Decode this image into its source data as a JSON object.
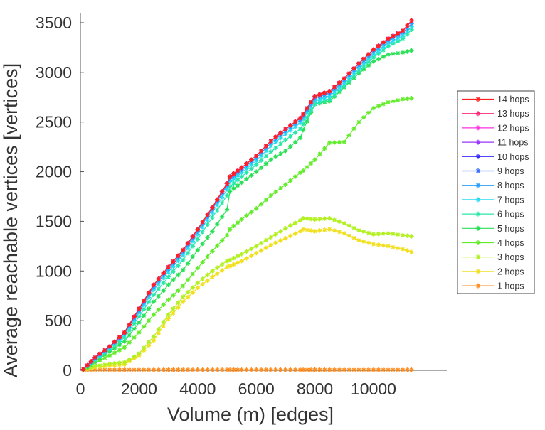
{
  "chart_data": {
    "type": "line",
    "title": "",
    "xlabel": "Volume (m) [edges]",
    "ylabel": "Average reachable vertices [vertices]",
    "xlim": [
      0,
      12500
    ],
    "ylim": [
      0,
      3600
    ],
    "x_ticks": [
      0,
      2000,
      4000,
      6000,
      8000,
      10000
    ],
    "y_ticks": [
      0,
      500,
      1000,
      1500,
      2000,
      2500,
      3000,
      3500
    ],
    "grid": false,
    "legend_position": "right",
    "x": [
      100,
      500,
      1000,
      1500,
      2000,
      2500,
      3000,
      3500,
      4000,
      4500,
      5000,
      5100,
      5500,
      6000,
      6500,
      7000,
      7500,
      7600,
      8000,
      8500,
      9000,
      9500,
      10000,
      10500,
      11000,
      11300
    ],
    "series": [
      {
        "name": "14 hops",
        "color": "#ff2020",
        "values": [
          10,
          130,
          240,
          380,
          620,
          860,
          1040,
          1210,
          1420,
          1640,
          1880,
          1950,
          2040,
          2160,
          2310,
          2430,
          2540,
          2580,
          2760,
          2810,
          2940,
          3090,
          3230,
          3340,
          3420,
          3520
        ]
      },
      {
        "name": "13 hops",
        "color": "#ff2a7a",
        "values": [
          10,
          130,
          240,
          380,
          620,
          860,
          1040,
          1210,
          1420,
          1640,
          1880,
          1950,
          2040,
          2160,
          2310,
          2430,
          2540,
          2580,
          2760,
          2810,
          2940,
          3090,
          3230,
          3340,
          3420,
          3520
        ]
      },
      {
        "name": "12 hops",
        "color": "#ff30e0",
        "values": [
          10,
          130,
          240,
          380,
          620,
          860,
          1040,
          1210,
          1420,
          1640,
          1880,
          1950,
          2040,
          2160,
          2310,
          2430,
          2540,
          2580,
          2760,
          2810,
          2940,
          3090,
          3230,
          3340,
          3420,
          3520
        ]
      },
      {
        "name": "11 hops",
        "color": "#9a35ff",
        "values": [
          10,
          130,
          240,
          380,
          620,
          860,
          1040,
          1210,
          1420,
          1640,
          1880,
          1950,
          2040,
          2160,
          2310,
          2430,
          2540,
          2580,
          2760,
          2810,
          2940,
          3090,
          3230,
          3340,
          3420,
          3520
        ]
      },
      {
        "name": "10 hops",
        "color": "#3a2cff",
        "values": [
          10,
          130,
          240,
          380,
          620,
          860,
          1040,
          1210,
          1420,
          1640,
          1880,
          1950,
          2040,
          2160,
          2310,
          2430,
          2540,
          2580,
          2760,
          2810,
          2940,
          3090,
          3230,
          3340,
          3420,
          3520
        ]
      },
      {
        "name": "9 hops",
        "color": "#3a6cff",
        "values": [
          10,
          130,
          240,
          380,
          620,
          860,
          1040,
          1210,
          1420,
          1640,
          1880,
          1950,
          2040,
          2160,
          2310,
          2430,
          2540,
          2580,
          2760,
          2810,
          2940,
          3090,
          3230,
          3340,
          3420,
          3520
        ]
      },
      {
        "name": "8 hops",
        "color": "#2aa0ff",
        "values": [
          10,
          120,
          235,
          370,
          600,
          840,
          1020,
          1190,
          1400,
          1620,
          1860,
          1930,
          2020,
          2140,
          2290,
          2410,
          2520,
          2560,
          2740,
          2790,
          2920,
          3070,
          3210,
          3320,
          3400,
          3490
        ]
      },
      {
        "name": "7 hops",
        "color": "#28dcf0",
        "values": [
          10,
          110,
          225,
          355,
          580,
          810,
          990,
          1160,
          1370,
          1590,
          1820,
          1900,
          1990,
          2110,
          2260,
          2380,
          2490,
          2530,
          2710,
          2760,
          2890,
          3040,
          3180,
          3290,
          3370,
          3460
        ]
      },
      {
        "name": "6 hops",
        "color": "#28e8a8",
        "values": [
          10,
          100,
          210,
          330,
          540,
          760,
          940,
          1110,
          1320,
          1540,
          1760,
          1850,
          1950,
          2070,
          2200,
          2320,
          2430,
          2480,
          2680,
          2730,
          2860,
          3010,
          3150,
          3260,
          3340,
          3430
        ]
      },
      {
        "name": "5 hops",
        "color": "#2ae055",
        "values": [
          10,
          90,
          190,
          290,
          480,
          690,
          860,
          1010,
          1210,
          1400,
          1620,
          1800,
          1890,
          2000,
          2120,
          2210,
          2340,
          2420,
          2680,
          2710,
          2850,
          2990,
          3110,
          3180,
          3200,
          3220
        ]
      },
      {
        "name": "4 hops",
        "color": "#62ec2a",
        "values": [
          10,
          75,
          150,
          230,
          380,
          560,
          710,
          850,
          1030,
          1200,
          1360,
          1420,
          1520,
          1630,
          1760,
          1870,
          1990,
          2010,
          2120,
          2290,
          2300,
          2500,
          2640,
          2700,
          2730,
          2740
        ]
      },
      {
        "name": "3 hops",
        "color": "#b2f020",
        "values": [
          5,
          40,
          65,
          80,
          170,
          340,
          560,
          740,
          880,
          1000,
          1100,
          1110,
          1170,
          1250,
          1340,
          1430,
          1510,
          1530,
          1520,
          1530,
          1480,
          1410,
          1370,
          1380,
          1360,
          1350
        ]
      },
      {
        "name": "2 hops",
        "color": "#f2e020",
        "values": [
          5,
          30,
          45,
          60,
          150,
          300,
          520,
          690,
          830,
          940,
          1040,
          1050,
          1100,
          1180,
          1260,
          1330,
          1400,
          1420,
          1400,
          1420,
          1380,
          1310,
          1270,
          1250,
          1220,
          1190
        ]
      },
      {
        "name": "1 hops",
        "color": "#ff8a1a",
        "values": [
          5,
          5,
          5,
          5,
          5,
          5,
          5,
          5,
          5,
          5,
          5,
          5,
          5,
          5,
          5,
          5,
          5,
          5,
          5,
          5,
          5,
          5,
          5,
          5,
          5,
          5
        ]
      }
    ]
  }
}
